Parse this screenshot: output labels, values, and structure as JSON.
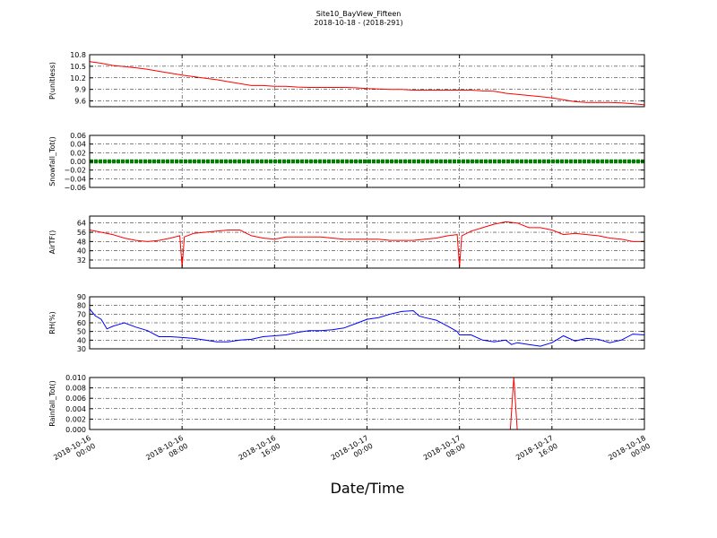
{
  "figure": {
    "title": "Site10_BayView_Fifteen",
    "subtitle": "2018-10-18 - (2018-291)",
    "xlabel": "Date/Time",
    "x_tick_labels": [
      [
        "2018-10-16",
        "00:00"
      ],
      [
        "2018-10-16",
        "08:00"
      ],
      [
        "2018-10-16",
        "16:00"
      ],
      [
        "2018-10-17",
        "00:00"
      ],
      [
        "2018-10-17",
        "08:00"
      ],
      [
        "2018-10-17",
        "16:00"
      ],
      [
        "2018-10-18",
        "00:00"
      ]
    ]
  },
  "chart_data": [
    {
      "type": "line",
      "ylabel": "P(unitless)",
      "ylim": [
        9.45,
        10.8
      ],
      "yticks": [
        "10.8",
        "10.5",
        "10.2",
        "9.9",
        "9.6"
      ],
      "ytick_values": [
        10.8,
        10.5,
        10.2,
        9.9,
        9.6
      ],
      "color": "#ff0000",
      "grid": true,
      "x_hours": [
        0,
        1,
        2,
        3,
        4,
        5,
        6,
        7,
        8,
        9,
        10,
        11,
        12,
        13,
        14,
        15,
        16,
        17,
        18,
        19,
        20,
        21,
        22,
        23,
        24,
        25,
        26,
        27,
        28,
        29,
        30,
        31,
        32,
        33,
        34,
        35,
        36,
        37,
        38,
        39,
        40,
        41,
        42,
        43,
        44,
        45,
        46,
        47,
        48
      ],
      "values": [
        10.62,
        10.58,
        10.52,
        10.49,
        10.46,
        10.42,
        10.37,
        10.32,
        10.27,
        10.23,
        10.19,
        10.15,
        10.1,
        10.05,
        10.0,
        10.0,
        9.98,
        9.98,
        9.96,
        9.95,
        9.95,
        9.95,
        9.95,
        9.94,
        9.92,
        9.91,
        9.9,
        9.9,
        9.88,
        9.88,
        9.88,
        9.88,
        9.88,
        9.88,
        9.86,
        9.85,
        9.8,
        9.77,
        9.74,
        9.71,
        9.68,
        9.63,
        9.58,
        9.56,
        9.56,
        9.56,
        9.55,
        9.53,
        9.5
      ]
    },
    {
      "type": "scatter",
      "ylabel": "Snowfall_Tot()",
      "ylim": [
        -0.06,
        0.06
      ],
      "yticks": [
        "0.06",
        "0.04",
        "0.02",
        "0.00",
        "−0.02",
        "−0.04",
        "−0.06"
      ],
      "ytick_values": [
        0.06,
        0.04,
        0.02,
        0.0,
        -0.02,
        -0.04,
        -0.06
      ],
      "color": "#007f00",
      "grid": true,
      "x_range_hours": [
        0,
        48
      ],
      "constant_value": 0.0
    },
    {
      "type": "line",
      "ylabel": "AirTF()",
      "ylim": [
        25,
        70
      ],
      "yticks": [
        "64",
        "56",
        "48",
        "40",
        "32"
      ],
      "ytick_values": [
        64,
        56,
        48,
        40,
        32
      ],
      "color": "#ff0000",
      "grid": true,
      "x_hours": [
        0,
        1,
        2,
        3,
        4,
        5,
        6,
        7,
        7.8,
        8,
        8.2,
        9,
        10,
        11,
        12,
        13,
        14,
        15,
        16,
        17,
        18,
        19,
        20,
        21,
        22,
        23,
        24,
        25,
        26,
        27,
        28,
        29,
        30,
        31,
        31.8,
        32,
        32.2,
        33,
        34,
        35,
        36,
        37,
        38,
        39,
        40,
        41,
        42,
        43,
        44,
        45,
        46,
        47,
        48
      ],
      "values": [
        58,
        56,
        54,
        51,
        49,
        48,
        49,
        51,
        53,
        26,
        52,
        55,
        56,
        57,
        58,
        58,
        53,
        51,
        50,
        52,
        52,
        52,
        52,
        51,
        50,
        50,
        50,
        50,
        49,
        49,
        49,
        50,
        51,
        53,
        54,
        26,
        53,
        57,
        60,
        63,
        65,
        64,
        60,
        60,
        58,
        54,
        55,
        54,
        53,
        51,
        50,
        48,
        48
      ]
    },
    {
      "type": "line",
      "ylabel": "RH(%)",
      "ylim": [
        30,
        90
      ],
      "yticks": [
        "90",
        "80",
        "70",
        "60",
        "50",
        "40",
        "30"
      ],
      "ytick_values": [
        90,
        80,
        70,
        60,
        50,
        40,
        30
      ],
      "color": "#0000ff",
      "grid": true,
      "x_hours": [
        0,
        0.5,
        1,
        1.5,
        2,
        3,
        4,
        5,
        6,
        7,
        8,
        9,
        10,
        11,
        12,
        13,
        14,
        15,
        16,
        17,
        18,
        19,
        20,
        21,
        22,
        23,
        24,
        25,
        26,
        27,
        28,
        28.5,
        29,
        30,
        31,
        31.8,
        32,
        33,
        34,
        35,
        36,
        36.5,
        37,
        38,
        39,
        40,
        41,
        42,
        43,
        44,
        45,
        46,
        47,
        48
      ],
      "values": [
        76,
        68,
        64,
        53,
        56,
        60,
        55,
        51,
        44,
        44,
        43,
        42,
        40,
        38,
        38,
        40,
        41,
        44,
        45,
        46,
        49,
        51,
        51,
        52,
        54,
        59,
        64,
        66,
        70,
        73,
        74,
        68,
        66,
        63,
        56,
        50,
        46,
        46,
        40,
        38,
        40,
        35,
        37,
        35,
        33,
        37,
        45,
        39,
        42,
        41,
        37,
        40,
        47,
        46
      ]
    },
    {
      "type": "line",
      "ylabel": "Rainfall_Tot()",
      "ylim": [
        0.0,
        0.01
      ],
      "yticks": [
        "0.010",
        "0.008",
        "0.006",
        "0.004",
        "0.002",
        "0.000"
      ],
      "ytick_values": [
        0.01,
        0.008,
        0.006,
        0.004,
        0.002,
        0.0
      ],
      "color": "#ff0000",
      "grid": true,
      "x_hours": [
        0,
        36.4,
        36.7,
        37.0,
        48
      ],
      "values": [
        0.0,
        0.0,
        0.01,
        0.0,
        0.0
      ]
    }
  ]
}
